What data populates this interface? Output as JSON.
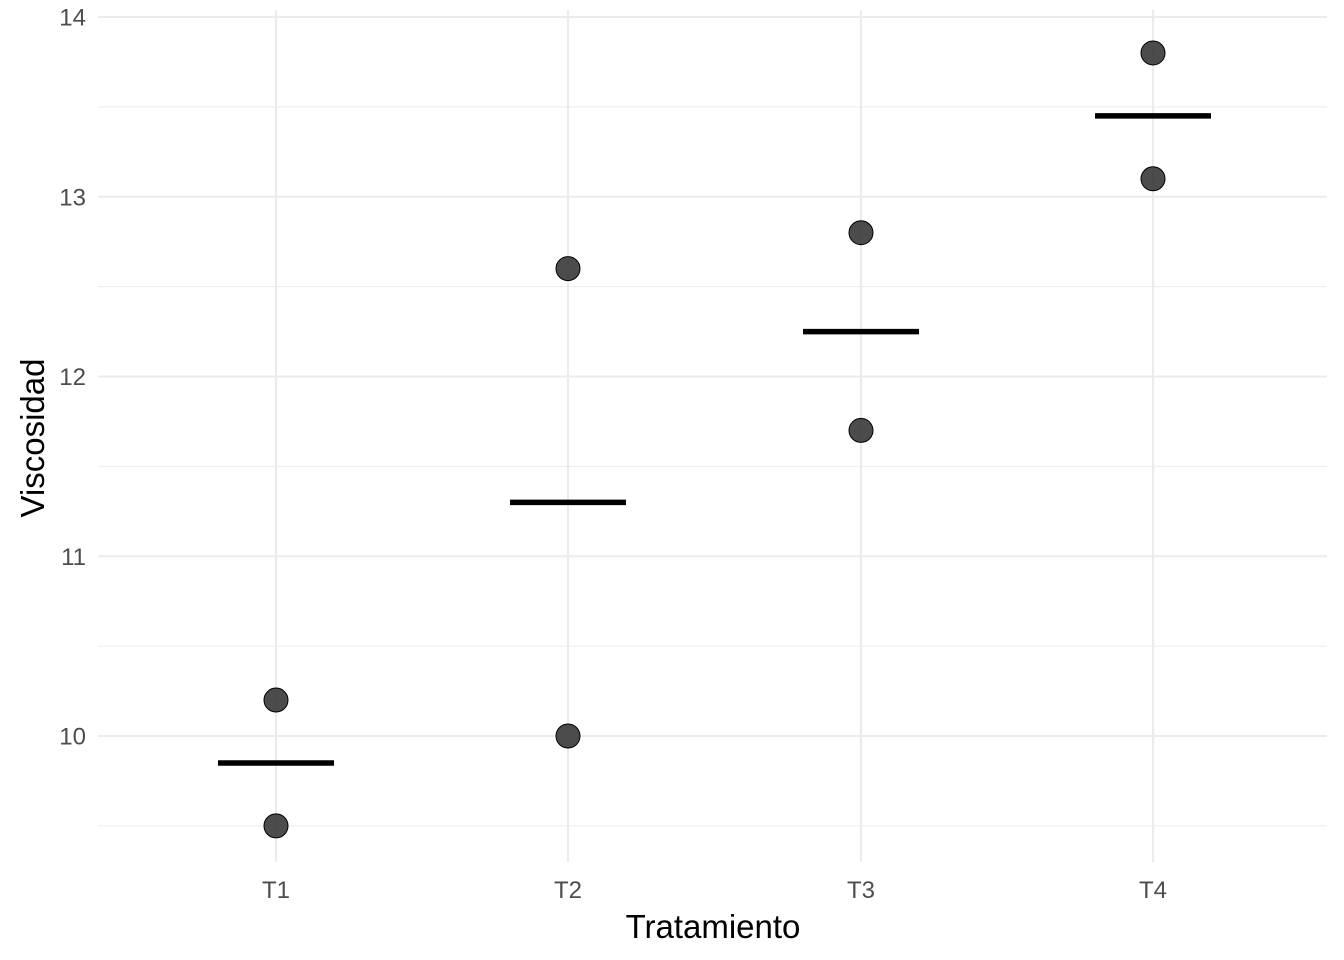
{
  "chart_data": {
    "type": "scatter",
    "title": "",
    "xlabel": "Tratamiento",
    "ylabel": "Viscosidad",
    "categories": [
      "T1",
      "T2",
      "T3",
      "T4"
    ],
    "points": [
      {
        "category": "T1",
        "y": 10.2
      },
      {
        "category": "T1",
        "y": 9.5
      },
      {
        "category": "T2",
        "y": 12.6
      },
      {
        "category": "T2",
        "y": 10.0
      },
      {
        "category": "T3",
        "y": 12.8
      },
      {
        "category": "T3",
        "y": 11.7
      },
      {
        "category": "T4",
        "y": 13.8
      },
      {
        "category": "T4",
        "y": 13.1
      }
    ],
    "means": [
      {
        "category": "T1",
        "y": 9.85
      },
      {
        "category": "T2",
        "y": 11.3
      },
      {
        "category": "T3",
        "y": 12.25
      },
      {
        "category": "T4",
        "y": 13.45
      }
    ],
    "ylim": [
      9.5,
      14
    ],
    "yticks": [
      10,
      11,
      12,
      13,
      14
    ],
    "ytick_labels": [
      "10",
      "11",
      "12",
      "13",
      "14"
    ],
    "yminor": [
      9.5,
      10.5,
      11.5,
      12.5,
      13.5
    ],
    "grid": true,
    "legend": "none",
    "colors": {
      "point": "#333333",
      "mean_line": "#000000",
      "grid": "#ebebeb",
      "tick_text": "#4d4d4d"
    }
  }
}
